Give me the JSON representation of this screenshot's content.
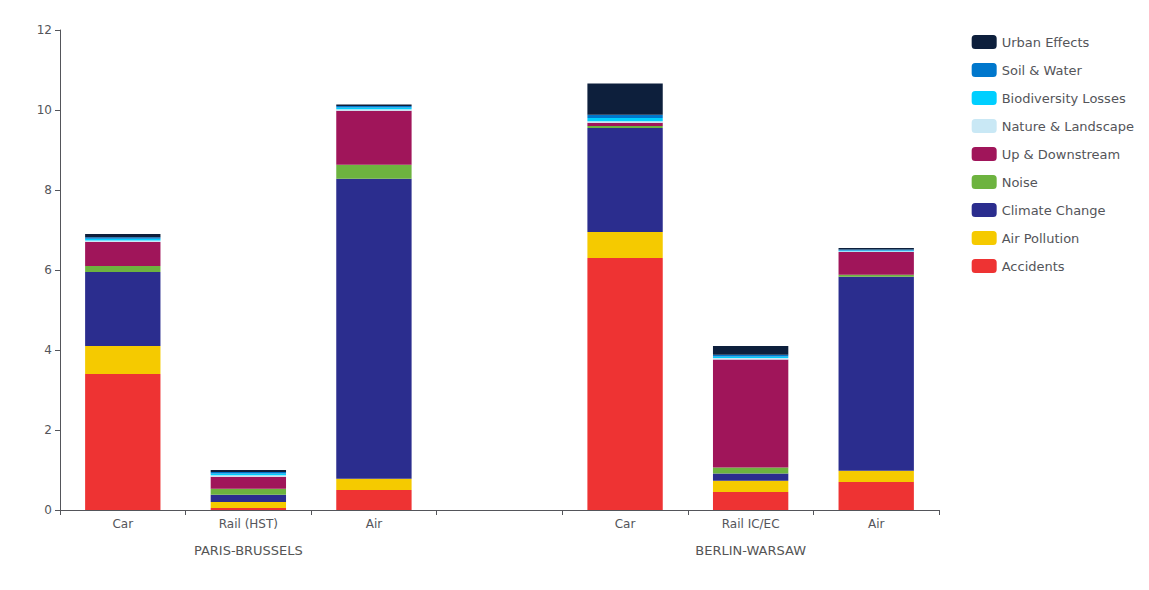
{
  "chart_data": {
    "type": "bar",
    "stacked": true,
    "categories": [
      "Car",
      "Rail (HST)",
      "Air",
      null,
      "Car",
      "Rail IC/EC",
      "Air"
    ],
    "annotations": [
      "PARIS-BRUSSELS",
      "BERLIN-WARSAW"
    ],
    "series": [
      {
        "name": "Accidents",
        "color": "#EE3333",
        "values": [
          3.4,
          0.05,
          0.5,
          null,
          6.3,
          0.45,
          0.7
        ]
      },
      {
        "name": "Air Pollution",
        "color": "#F5CA00",
        "values": [
          0.7,
          0.15,
          0.28,
          null,
          0.65,
          0.28,
          0.28
        ]
      },
      {
        "name": "Climate Change",
        "color": "#2B2D8E",
        "values": [
          1.85,
          0.18,
          7.5,
          null,
          2.6,
          0.18,
          4.85
        ]
      },
      {
        "name": "Noise",
        "color": "#6DB33F",
        "values": [
          0.15,
          0.15,
          0.35,
          null,
          0.05,
          0.15,
          0.05
        ]
      },
      {
        "name": "Up & Downstream",
        "color": "#A0155A",
        "values": [
          0.6,
          0.3,
          1.35,
          null,
          0.08,
          2.7,
          0.57
        ]
      },
      {
        "name": "Nature & Landscape",
        "color": "#C9E8F5",
        "values": [
          0.04,
          0.04,
          0.04,
          null,
          0.04,
          0.04,
          0.02
        ]
      },
      {
        "name": "Biodiversity Losses",
        "color": "#00CFFF",
        "values": [
          0.04,
          0.04,
          0.04,
          null,
          0.08,
          0.04,
          0.02
        ]
      },
      {
        "name": "Soil & Water",
        "color": "#0077CC",
        "values": [
          0.04,
          0.04,
          0.04,
          null,
          0.08,
          0.04,
          0.02
        ]
      },
      {
        "name": "Urban Effects",
        "color": "#0D1F3C",
        "values": [
          0.08,
          0.05,
          0.04,
          null,
          0.78,
          0.22,
          0.04
        ]
      }
    ],
    "ylim": [
      0,
      12
    ],
    "yticks": [
      0,
      2,
      4,
      6,
      8,
      10,
      12
    ],
    "grid": false,
    "legend": "right"
  }
}
